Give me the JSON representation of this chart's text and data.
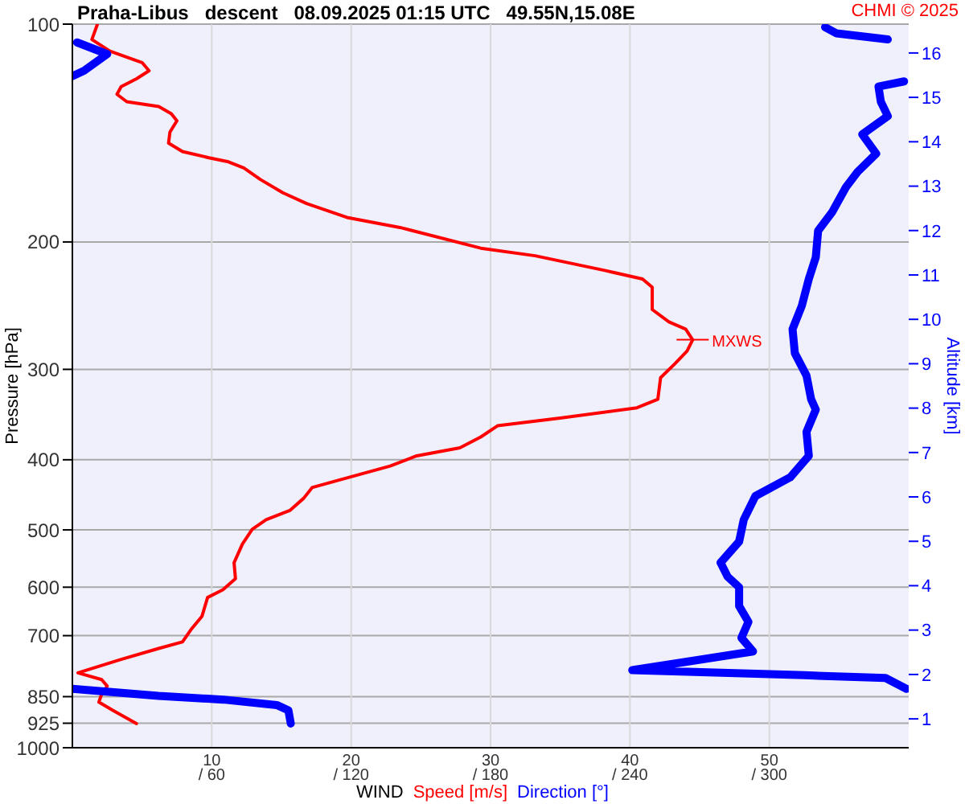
{
  "chart_data": {
    "type": "line",
    "title": "Praha-Libus   descent   08.09.2025 01:15 UTC   49.55N,15.08E",
    "xlabel": "WIND",
    "ylabel": "Pressure [hPa]",
    "y2label": "Altitude [km]",
    "annotations": [
      "CHMI © 2025",
      {
        "text": "MXWS",
        "x": 44.5,
        "y": 273
      }
    ],
    "series": [
      {
        "name": "Speed [m/s]",
        "color": "#ff0000",
        "x": [
          1.8,
          1.4,
          2.7,
          5.0,
          5.5,
          4.6,
          3.5,
          3.2,
          3.9,
          6.2,
          7.1,
          7.5,
          7.0,
          6.9,
          7.9,
          9.8,
          11.2,
          12.3,
          13.5,
          15.1,
          16.8,
          19.7,
          23.5,
          29.3,
          33.2,
          38.2,
          40.9,
          41.6,
          41.6,
          42.8,
          44.0,
          44.5,
          44.1,
          43.2,
          42.2,
          42.0,
          40.5,
          35.1,
          30.5,
          29.3,
          27.8,
          24.7,
          22.8,
          18.5,
          17.2,
          16.6,
          15.6,
          13.9,
          12.9,
          12.2,
          11.6,
          11.7,
          10.8,
          9.7,
          9.3,
          8.5,
          7.9,
          6.2,
          3.5,
          0.4,
          2.1,
          2.5,
          2.1,
          1.9,
          2.9,
          4.6
        ],
        "values": [
          100,
          105,
          109,
          113,
          116,
          119,
          122,
          125,
          128,
          130,
          133,
          136,
          141,
          146,
          150,
          153,
          155,
          158,
          164,
          171,
          177,
          185,
          191,
          204,
          209,
          219,
          225,
          231,
          248,
          258,
          264,
          273,
          283,
          295,
          308,
          330,
          339,
          350,
          359,
          372,
          385,
          395,
          408,
          430,
          437,
          452,
          470,
          484,
          499,
          523,
          555,
          584,
          605,
          620,
          658,
          687,
          714,
          729,
          755,
          788,
          805,
          822,
          843,
          865,
          888,
          926
        ]
      },
      {
        "name": "Direction [°]",
        "color": "#0000ff",
        "axis": "x2",
        "x": [
          324,
          329,
          351,
          null,
          2,
          15,
          5,
          0,
          null,
          358,
          347,
          348,
          351,
          340,
          346,
          338,
          333,
          327,
          321,
          320,
          317,
          314,
          310,
          311,
          316,
          318,
          320,
          316,
          317,
          309,
          294,
          289,
          287,
          279,
          282,
          287,
          287,
          291,
          288,
          293,
          264,
          241,
          315,
          350,
          359,
          null,
          0,
          37,
          65,
          88,
          93,
          94
        ],
        "values": [
          101,
          103,
          105,
          null,
          106,
          110,
          116,
          118,
          null,
          120,
          122,
          128,
          134,
          142,
          151,
          160,
          168,
          182,
          193,
          210,
          225,
          245,
          264,
          285,
          306,
          330,
          341,
          366,
          395,
          423,
          449,
          484,
          519,
          555,
          580,
          600,
          637,
          670,
          705,
          736,
          761,
          781,
          794,
          801,
          829,
          null,
          829,
          848,
          858,
          873,
          888,
          926
        ]
      }
    ],
    "xlim": [
      0,
      60
    ],
    "xticks": [
      10,
      20,
      30,
      40,
      50
    ],
    "x2lim": [
      0,
      360
    ],
    "x2ticks": [
      {
        "value": 60,
        "label": "/ 60"
      },
      {
        "value": 120,
        "label": "/ 120"
      },
      {
        "value": 180,
        "label": "/ 180"
      },
      {
        "value": 240,
        "label": "/ 240"
      },
      {
        "value": 300,
        "label": "/ 300"
      }
    ],
    "ylim": [
      1000,
      100
    ],
    "yticks": [
      100,
      200,
      300,
      400,
      500,
      600,
      700,
      850,
      925,
      1000
    ],
    "log": "y",
    "y2lim": [
      0.35,
      16.65
    ],
    "y2ticks": [
      1,
      2,
      3,
      4,
      5,
      6,
      7,
      8,
      9,
      10,
      11,
      12,
      13,
      14,
      15,
      16
    ],
    "grid": true,
    "legend": "bottom"
  }
}
